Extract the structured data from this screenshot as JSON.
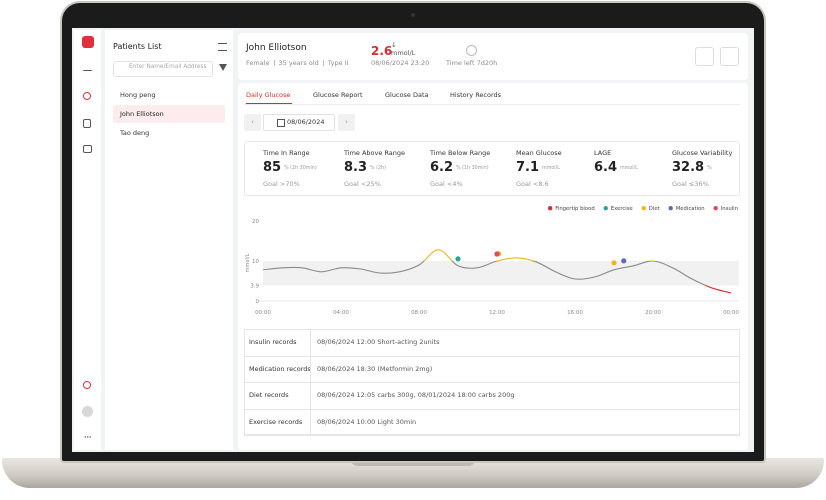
{
  "patients": {
    "title": "Patients List",
    "search_placeholder": "Enter Name/Email Address",
    "items": [
      "Hong peng",
      "John Elliotson",
      "Tao deng"
    ]
  },
  "patient": {
    "name": "John Elliotson",
    "gender": "Female",
    "age": "35 years old",
    "diabetes_type": "Type II",
    "current_glucose": 2.6,
    "glucose_unit": "mmol/L",
    "reading_time": "08/06/2024 23:20",
    "time_left": "Time left 7d20h"
  },
  "tabs": [
    "Daily Glucose",
    "Glucose Report",
    "Glucose Data",
    "History Records"
  ],
  "date": "08/06/2024",
  "stats": [
    {
      "label": "Time In Range",
      "value": 85,
      "unit": "% (2h 30min)",
      "goal": "Goal >70%"
    },
    {
      "label": "Time Above Range",
      "value": 8.3,
      "unit": "% (2h)",
      "goal": "Goal <25%"
    },
    {
      "label": "Time Below Range",
      "value": 6.2,
      "unit": "% (1h 30min)",
      "goal": "Goal <4%"
    },
    {
      "label": "Mean Glucose",
      "value": 7.1,
      "unit": "mmol/L",
      "goal": "Goal <8.6"
    },
    {
      "label": "LAGE",
      "value": 6.4,
      "unit": "mmol/L"
    },
    {
      "label": "Glucose Variability",
      "value": 32.8,
      "unit": "%",
      "goal": "Goal ≤36%"
    }
  ],
  "chart_data": {
    "type": "line",
    "y_label": "mmol/L",
    "x": [
      0,
      1,
      2,
      3,
      4,
      5,
      6,
      7,
      8,
      9,
      10,
      11,
      12,
      13,
      14,
      15,
      16,
      17,
      18,
      19,
      20,
      21,
      22,
      23,
      24
    ],
    "series": [
      {
        "color": "#8a8a8a",
        "values": [
          7.8,
          8.3,
          8.3,
          7.3,
          8.3,
          8.0,
          7.0,
          7.3,
          9.0,
          12.8,
          8.8,
          8.3,
          10.0,
          10.8,
          9.8,
          7.3,
          5.5,
          6.0,
          7.8,
          8.8,
          10.0,
          8.3,
          5.5,
          3.3,
          2.0
        ]
      }
    ],
    "target_range": [
      3.9,
      10
    ],
    "high_color": "#f2b51d",
    "low_color": "#d32f2f",
    "band_color": "#f1f1f1",
    "xlim": [
      0,
      24
    ],
    "xticks": [
      {
        "value": 0,
        "label": "00:00"
      },
      {
        "value": 4,
        "label": "04:00"
      },
      {
        "value": 8,
        "label": "08:00"
      },
      {
        "value": 12,
        "label": "12:00"
      },
      {
        "value": 16,
        "label": "16:00"
      },
      {
        "value": 20,
        "label": "20:00"
      },
      {
        "value": 24,
        "label": "00:00"
      }
    ],
    "ylim": [
      0,
      20
    ],
    "yticks": [
      0,
      3.9,
      10,
      20
    ],
    "grid": false,
    "legend": "top-right",
    "events": [
      {
        "name": "Fingertip blood",
        "color": "#d32f2f",
        "x": []
      },
      {
        "name": "Exercise",
        "color": "#26a69a",
        "x": [
          10
        ]
      },
      {
        "name": "Diet",
        "color": "#f2b51d",
        "x": [
          12.083,
          18
        ]
      },
      {
        "name": "Medication",
        "color": "#5c6bc0",
        "x": [
          18.5
        ]
      },
      {
        "name": "Insulin",
        "color": "#e04a5a",
        "x": [
          12
        ]
      }
    ]
  },
  "records": [
    {
      "label": "Insulin records",
      "text": "08/06/2024 12:00 Short-acting 2units"
    },
    {
      "label": "Medication records",
      "text": "08/06/2024 18:30 (Metformin 2mg)"
    },
    {
      "label": "Diet records",
      "text": "08/06/2024 12:05 carbs 300g, 08/01/2024 18:00 carbs 200g"
    },
    {
      "label": "Exercise records",
      "text": "08/06/2024 10:00 Light 30min"
    }
  ]
}
